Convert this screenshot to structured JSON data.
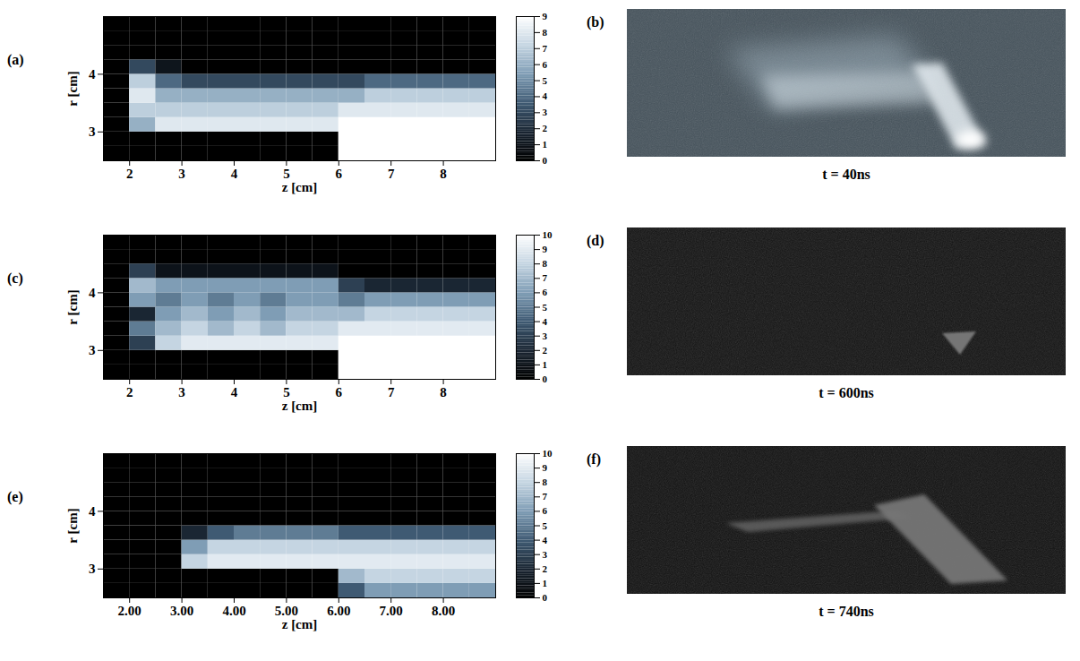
{
  "chart_data": [
    {
      "type": "heatmap",
      "panel_label": "(a)",
      "xlabel": "z [cm]",
      "ylabel": "r [cm]",
      "xlim": [
        1.5,
        9
      ],
      "ylim": [
        2.5,
        5
      ],
      "xticks": [
        2,
        3,
        4,
        5,
        6,
        7,
        8
      ],
      "yticks": [
        3,
        4
      ],
      "z_edges": [
        1.5,
        2,
        2.5,
        3,
        3.5,
        4,
        4.5,
        5,
        5.5,
        6,
        6.5,
        7,
        7.5,
        8,
        8.5,
        9
      ],
      "r_edges": [
        2.5,
        2.75,
        3,
        3.25,
        3.5,
        3.75,
        4,
        4.25,
        4.5,
        4.75,
        5
      ],
      "cells": [
        [
          0,
          0,
          0,
          0,
          0,
          0,
          0,
          0,
          0,
          9,
          9,
          9,
          9,
          9,
          9
        ],
        [
          0,
          0,
          0,
          0,
          0,
          0,
          0,
          0,
          0,
          9,
          9,
          9,
          9,
          9,
          9
        ],
        [
          0,
          6,
          8,
          8,
          8,
          8,
          8,
          8,
          8,
          9,
          9,
          9,
          9,
          9,
          9
        ],
        [
          0,
          7,
          7,
          7,
          7,
          7,
          7,
          7,
          7,
          8,
          8,
          8,
          8,
          8,
          8
        ],
        [
          0,
          8,
          6,
          6,
          6,
          6,
          6,
          6,
          6,
          6,
          7,
          7,
          7,
          7,
          7
        ],
        [
          0,
          7,
          4,
          3,
          3,
          3,
          3,
          3,
          3,
          3,
          4,
          4,
          4,
          4,
          4
        ],
        [
          0,
          3,
          1,
          0,
          0,
          0,
          0,
          0,
          0,
          0,
          0,
          0,
          0,
          0,
          0
        ],
        [
          0,
          0,
          0,
          0,
          0,
          0,
          0,
          0,
          0,
          0,
          0,
          0,
          0,
          0,
          0
        ],
        [
          0,
          0,
          0,
          0,
          0,
          0,
          0,
          0,
          0,
          0,
          0,
          0,
          0,
          0,
          0
        ],
        [
          0,
          0,
          0,
          0,
          0,
          0,
          0,
          0,
          0,
          0,
          0,
          0,
          0,
          0,
          0
        ]
      ],
      "colorbar": {
        "range": [
          0,
          9
        ],
        "ticks": [
          0,
          1,
          2,
          3,
          4,
          5,
          6,
          7,
          8,
          9
        ]
      }
    },
    {
      "type": "heatmap",
      "panel_label": "(c)",
      "xlabel": "z [cm]",
      "ylabel": "r [cm]",
      "xlim": [
        1.5,
        9
      ],
      "ylim": [
        2.5,
        5
      ],
      "xticks": [
        2,
        3,
        4,
        5,
        6,
        7,
        8
      ],
      "yticks": [
        3,
        4
      ],
      "z_edges": [
        1.5,
        2,
        2.5,
        3,
        3.5,
        4,
        4.5,
        5,
        5.5,
        6,
        6.5,
        7,
        7.5,
        8,
        8.5,
        9
      ],
      "r_edges": [
        2.5,
        2.75,
        3,
        3.25,
        3.5,
        3.75,
        4,
        4.25,
        4.5,
        4.75,
        5
      ],
      "cells": [
        [
          0,
          0,
          0,
          0,
          0,
          0,
          0,
          0,
          0,
          10,
          10,
          10,
          10,
          10,
          10
        ],
        [
          0,
          0,
          0,
          0,
          0,
          0,
          0,
          0,
          0,
          10,
          10,
          10,
          10,
          10,
          10
        ],
        [
          0,
          3,
          8,
          9,
          9,
          9,
          9,
          9,
          9,
          10,
          10,
          10,
          10,
          10,
          10
        ],
        [
          0,
          5,
          7,
          8,
          7,
          8,
          7,
          8,
          8,
          9,
          9,
          9,
          9,
          9,
          9
        ],
        [
          0,
          2,
          6,
          7,
          6,
          7,
          6,
          7,
          7,
          7,
          8,
          8,
          8,
          8,
          8
        ],
        [
          0,
          6,
          5,
          6,
          5,
          6,
          5,
          6,
          6,
          5,
          6,
          6,
          6,
          6,
          6
        ],
        [
          0,
          7,
          6,
          6,
          6,
          6,
          6,
          6,
          6,
          3,
          2,
          2,
          2,
          2,
          2
        ],
        [
          0,
          3,
          1,
          1,
          1,
          1,
          1,
          1,
          1,
          0,
          0,
          0,
          0,
          0,
          0
        ],
        [
          0,
          0,
          0,
          0,
          0,
          0,
          0,
          0,
          0,
          0,
          0,
          0,
          0,
          0,
          0
        ],
        [
          0,
          0,
          0,
          0,
          0,
          0,
          0,
          0,
          0,
          0,
          0,
          0,
          0,
          0,
          0
        ]
      ],
      "colorbar": {
        "range": [
          0,
          10
        ],
        "ticks": [
          0,
          1,
          2,
          3,
          4,
          5,
          6,
          7,
          8,
          9,
          10
        ]
      }
    },
    {
      "type": "heatmap",
      "panel_label": "(e)",
      "xlabel": "z [cm]",
      "ylabel": "r [cm]",
      "xlim": [
        1.5,
        9
      ],
      "ylim": [
        2.5,
        5
      ],
      "xticks": [
        {
          "value": 2,
          "label": "2.00"
        },
        {
          "value": 3,
          "label": "3.00"
        },
        {
          "value": 4,
          "label": "4.00"
        },
        {
          "value": 5,
          "label": "5.00"
        },
        {
          "value": 6,
          "label": "6.00"
        },
        {
          "value": 7,
          "label": "7.00"
        },
        {
          "value": 8,
          "label": "8.00"
        }
      ],
      "yticks": [
        3,
        4
      ],
      "z_edges": [
        1.5,
        2,
        2.5,
        3,
        3.5,
        4,
        4.5,
        5,
        5.5,
        6,
        6.5,
        7,
        7.5,
        8,
        8.5,
        9
      ],
      "r_edges": [
        2.5,
        2.75,
        3,
        3.25,
        3.5,
        3.75,
        4,
        4.25,
        4.5,
        4.75,
        5
      ],
      "cells": [
        [
          0,
          0,
          0,
          0,
          0,
          0,
          0,
          0,
          0,
          4,
          6,
          6,
          6,
          6,
          6
        ],
        [
          0,
          0,
          0,
          0,
          0,
          0,
          0,
          0,
          0,
          7,
          8,
          8,
          8,
          8,
          8
        ],
        [
          0,
          0,
          0,
          8,
          9,
          9,
          9,
          9,
          9,
          9,
          9,
          9,
          9,
          9,
          9
        ],
        [
          0,
          0,
          0,
          6,
          8,
          8,
          8,
          8,
          8,
          8,
          8,
          8,
          8,
          8,
          8
        ],
        [
          0,
          0,
          0,
          2,
          4,
          5,
          5,
          5,
          5,
          4,
          4,
          4,
          4,
          4,
          4
        ],
        [
          0,
          0,
          0,
          0,
          0,
          0,
          0,
          0,
          0,
          0,
          0,
          0,
          0,
          0,
          0
        ],
        [
          0,
          0,
          0,
          0,
          0,
          0,
          0,
          0,
          0,
          0,
          0,
          0,
          0,
          0,
          0
        ],
        [
          0,
          0,
          0,
          0,
          0,
          0,
          0,
          0,
          0,
          0,
          0,
          0,
          0,
          0,
          0
        ],
        [
          0,
          0,
          0,
          0,
          0,
          0,
          0,
          0,
          0,
          0,
          0,
          0,
          0,
          0,
          0
        ],
        [
          0,
          0,
          0,
          0,
          0,
          0,
          0,
          0,
          0,
          0,
          0,
          0,
          0,
          0,
          0
        ]
      ],
      "colorbar": {
        "range": [
          0,
          10
        ],
        "ticks": [
          0,
          1,
          2,
          3,
          4,
          5,
          6,
          7,
          8,
          9,
          10
        ]
      }
    }
  ],
  "images": [
    {
      "panel_label": "(b)",
      "caption": "t = 40ns"
    },
    {
      "panel_label": "(d)",
      "caption": "t = 600ns"
    },
    {
      "panel_label": "(f)",
      "caption": "t = 740ns"
    }
  ]
}
